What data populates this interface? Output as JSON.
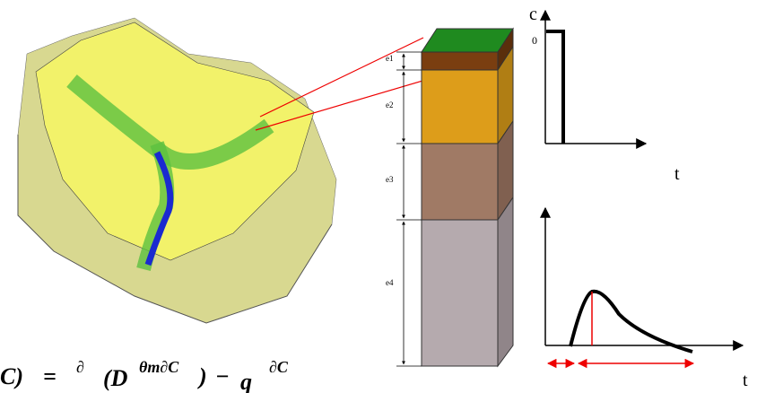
{
  "soil_column": {
    "layers": [
      "e1",
      "e2",
      "e3",
      "e4"
    ]
  },
  "input_chart": {
    "y_label": "c",
    "y_tick": "0",
    "x_label": "t"
  },
  "output_chart": {
    "x_label": "t"
  },
  "equation": {
    "lhs": "C)",
    "eq": "=",
    "partial": "∂",
    "open": "(D",
    "frac": "θm∂C",
    "close": ")",
    "minus": "−",
    "q": "q",
    "dC": "∂C"
  }
}
